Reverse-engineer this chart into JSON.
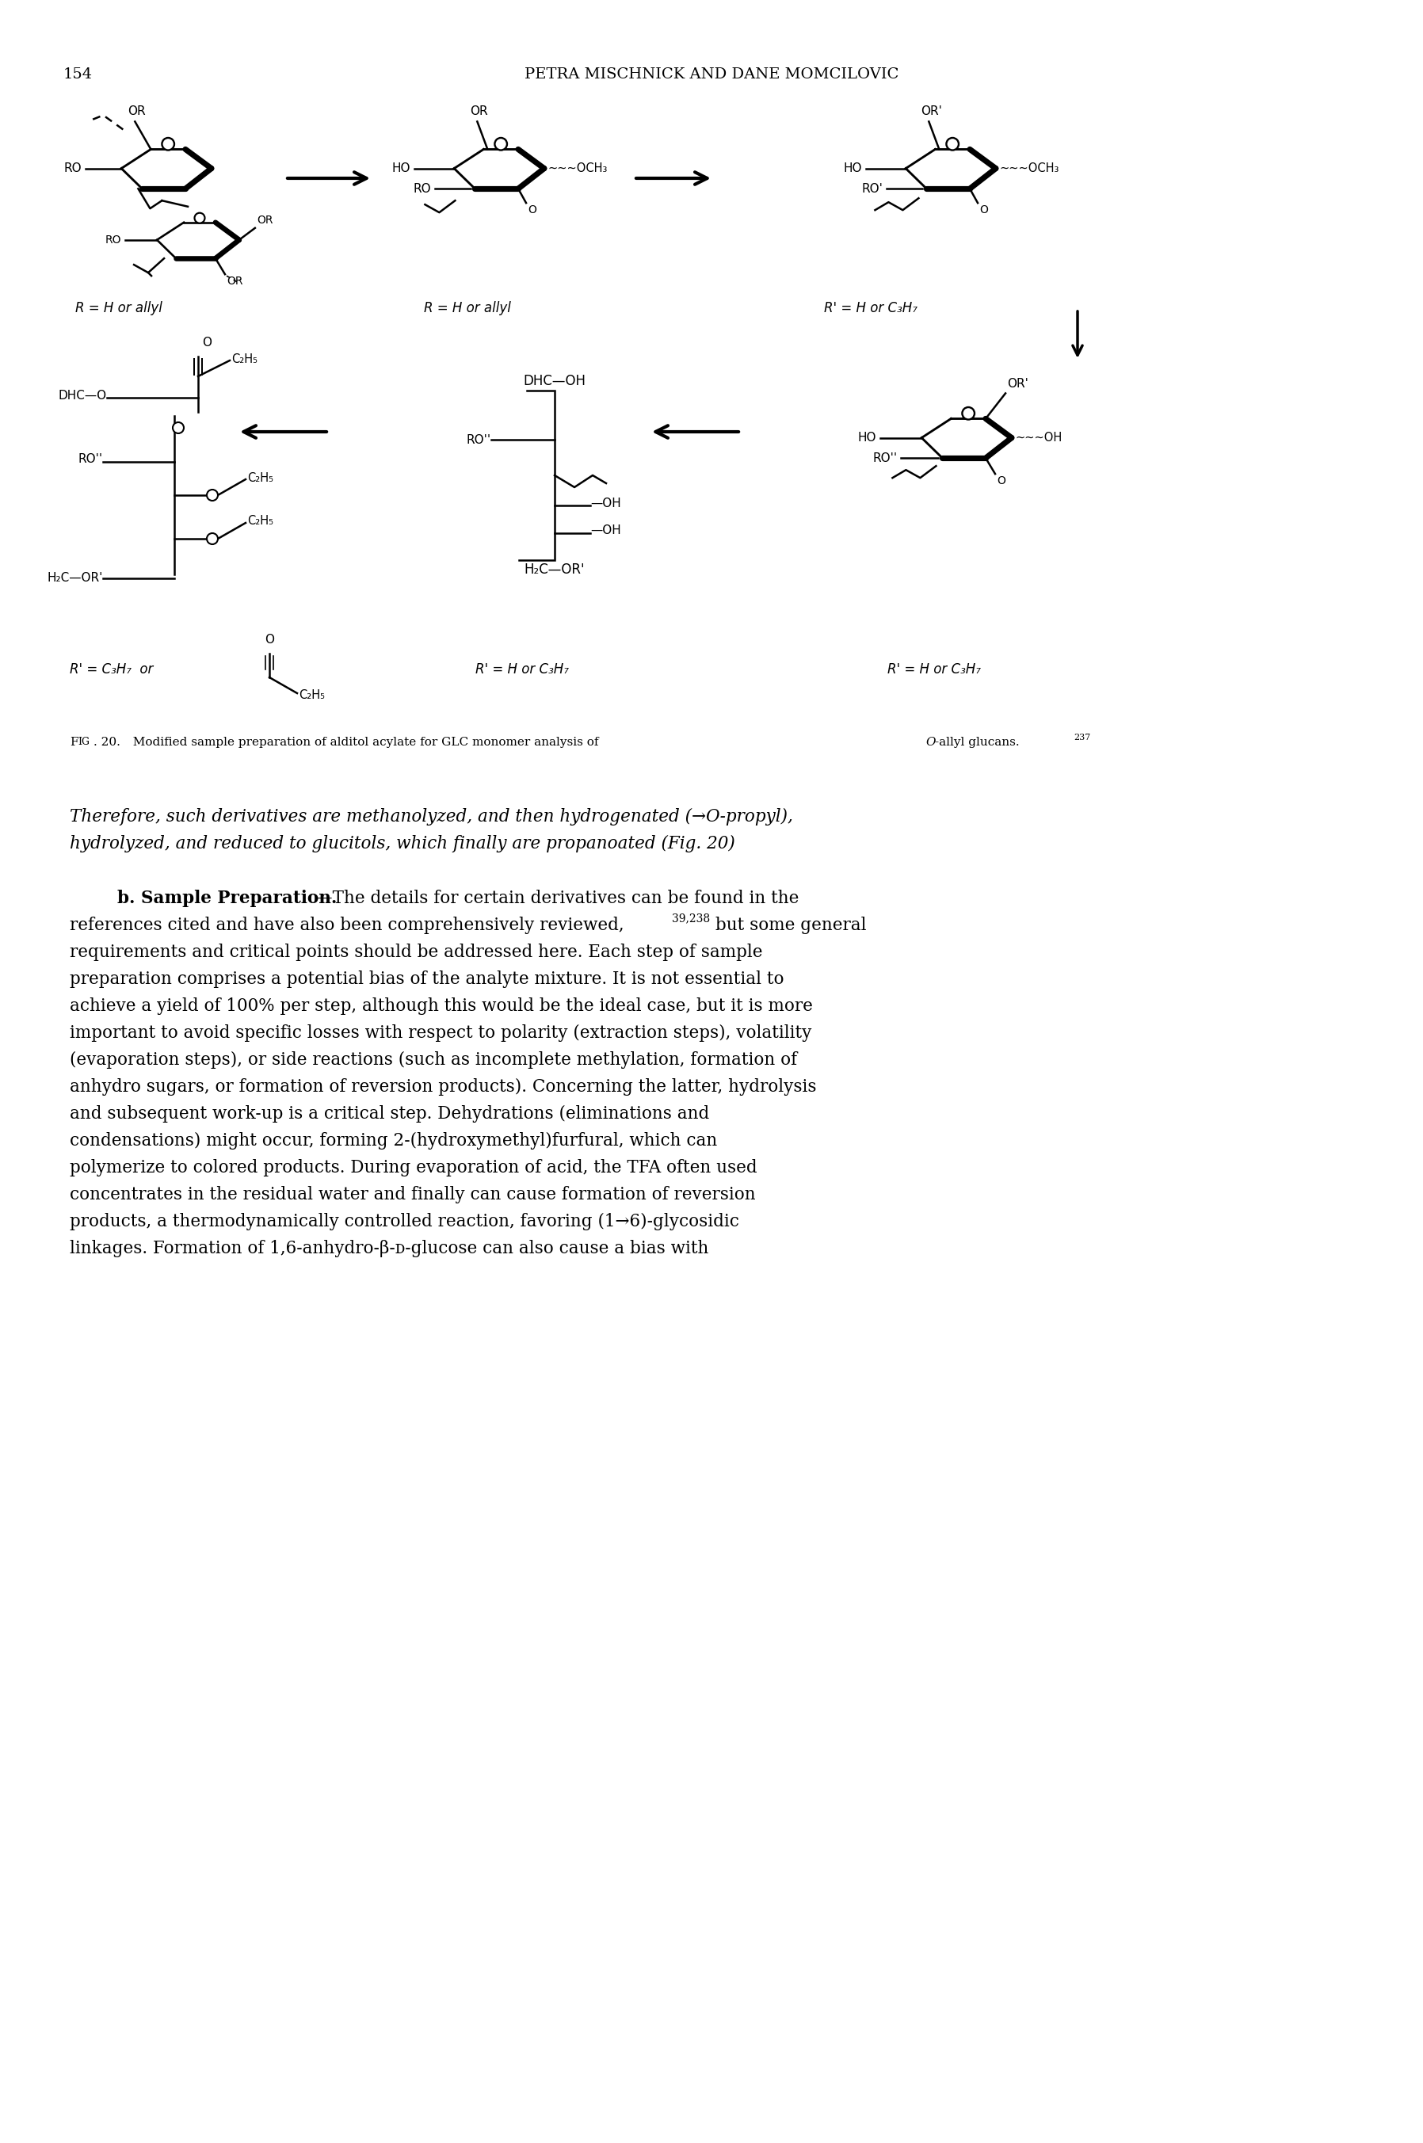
{
  "page_number": "154",
  "header": "PETRA MISCHNICK AND DANE MOMCILOVIC",
  "background_color": "#ffffff",
  "text_color": "#000000",
  "fig_caption_prefix": "FIG. 20.",
  "fig_caption_body": "  Modified sample preparation of alditol acylate for GLC monomer analysis of ",
  "fig_caption_italic": "O",
  "fig_caption_end": "-allyl glucans.",
  "fig_caption_ref": "237",
  "para1_line1": "Therefore, such derivatives are methanolyzed, and then hydrogenated (→Ο-propyl),",
  "para1_line2": "hydrolyzed, and reduced to glucitols, which finally are propanoated (Fig. 20)",
  "body_lines": [
    "references cited and have also been comprehensively reviewed,",
    "requirements and critical points should be addressed here. Each step of sample",
    "preparation comprises a potential bias of the analyte mixture. It is not essential to",
    "achieve a yield of 100% per step, although this would be the ideal case, but it is more",
    "important to avoid specific losses with respect to polarity (extraction steps), volatility",
    "(evaporation steps), or side reactions (such as incomplete methylation, formation of",
    "anhydro sugars, or formation of reversion products). Concerning the latter, hydrolysis",
    "and subsequent work-up is a critical step. Dehydrations (eliminations and",
    "condensations) might occur, forming 2-(hydroxymethyl)furfural, which can",
    "polymerize to colored products. During evaporation of acid, the TFA often used",
    "concentrates in the residual water and finally can cause formation of reversion",
    "products, a thermodynamically controlled reaction, favoring (1→6)-glycosidic",
    "linkages. Formation of 1,6-anhydro-β-ᴅ-glucose can also cause a bias with"
  ]
}
